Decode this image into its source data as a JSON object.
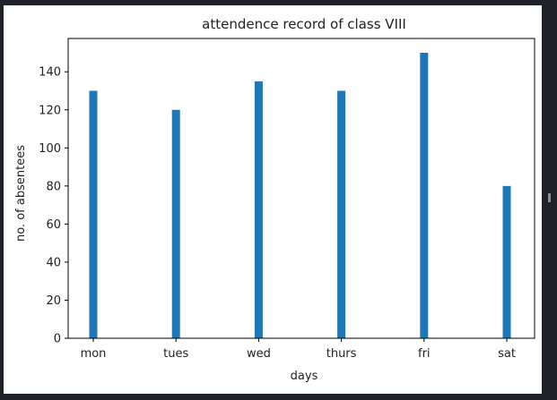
{
  "chart_data": {
    "type": "bar",
    "title": "attendence record of class VIII",
    "xlabel": "days",
    "ylabel": "no. of absentees",
    "categories": [
      "mon",
      "tues",
      "wed",
      "thurs",
      "fri",
      "sat"
    ],
    "values": [
      130,
      120,
      135,
      130,
      150,
      80
    ],
    "ylim": [
      0,
      157.5
    ],
    "yticks": [
      0,
      20,
      40,
      60,
      80,
      100,
      120,
      140
    ],
    "bar_color": "#1f77b4",
    "grid": false,
    "legend": "none"
  }
}
